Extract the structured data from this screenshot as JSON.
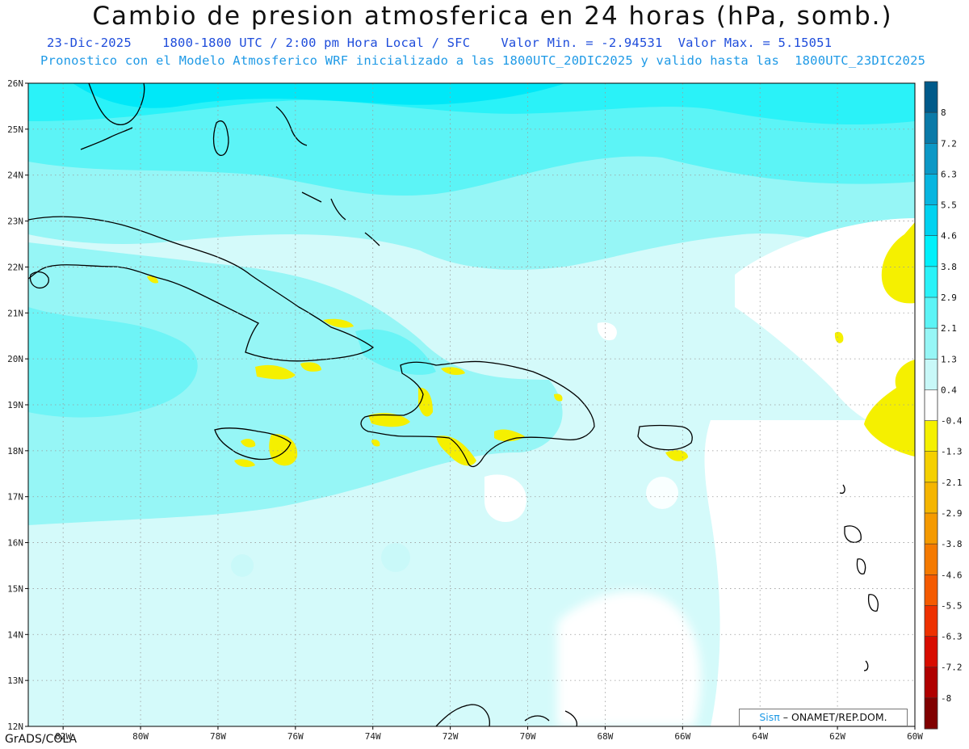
{
  "header": {
    "title": "Cambio de presion atmosferica en 24 horas (hPa, somb.)",
    "subtitle_line1": "23-Dic-2025    1800-1800 UTC / 2:00 pm Hora Local / SFC    Valor Min. = -2.94531  Valor Max. = 5.15051",
    "subtitle_line2": "Pronostico con el Modelo Atmosferico WRF inicializado a las 1800UTC_20DIC2025 y valido hasta las  1800UTC_23DIC2025"
  },
  "map": {
    "lat_labels": [
      "26N",
      "25N",
      "24N",
      "23N",
      "22N",
      "21N",
      "20N",
      "19N",
      "18N",
      "17N",
      "16N",
      "15N",
      "14N",
      "13N",
      "12N"
    ],
    "lon_labels": [
      "82W",
      "80W",
      "78W",
      "76W",
      "74W",
      "72W",
      "70W",
      "68W",
      "66W",
      "64W",
      "62W",
      "60W"
    ],
    "lat_range": [
      12,
      26
    ],
    "lon_range": [
      -82.9,
      -60
    ],
    "grid": true,
    "background_color": "#d4fafa"
  },
  "colorbar": {
    "levels": [
      "8",
      "7.2",
      "6.3",
      "5.5",
      "4.6",
      "3.8",
      "2.9",
      "2.1",
      "1.3",
      "0.4",
      "-0.4",
      "-1.3",
      "-2.1",
      "-2.9",
      "-3.8",
      "-4.6",
      "-5.5",
      "-6.3",
      "-7.2",
      "-8"
    ],
    "colors": [
      "#005a8a",
      "#0a7aa8",
      "#0c98c6",
      "#07b5e0",
      "#00d2f0",
      "#00f0fa",
      "#2af2f8",
      "#5cf4f6",
      "#96f6f6",
      "#c8f8f8",
      "#ffffff",
      "#f5f000",
      "#f5d000",
      "#f5b500",
      "#f59a00",
      "#f57a00",
      "#f55a00",
      "#ee3000",
      "#d80c00",
      "#b00000",
      "#800000"
    ]
  },
  "footer": {
    "software": "GrADS/COLA",
    "credit_brand": "Sisπ",
    "credit_org": "– ONAMET/REP.DOM."
  }
}
